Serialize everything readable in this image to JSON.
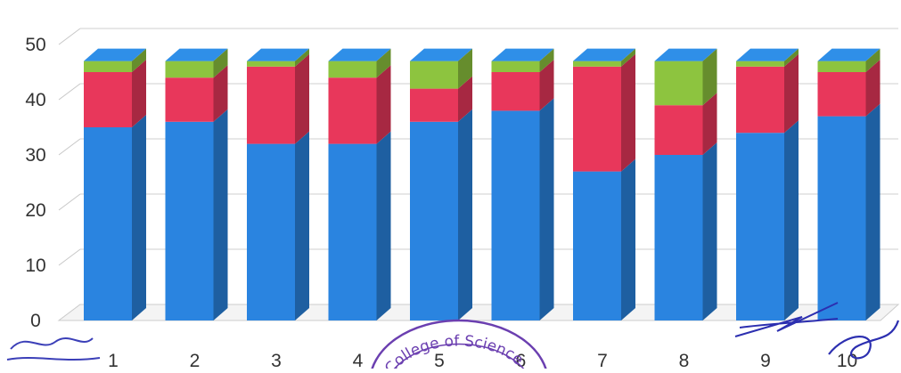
{
  "chart_data": {
    "type": "bar",
    "stacked": true,
    "style": "3d-column",
    "categories": [
      "1",
      "2",
      "3",
      "4",
      "5",
      "6",
      "7",
      "8",
      "9",
      "10"
    ],
    "series": [
      {
        "color": "#2a84e0",
        "values": [
          35,
          36,
          32,
          32,
          36,
          38,
          27,
          30,
          34,
          37
        ]
      },
      {
        "color": "#e8375b",
        "values": [
          10,
          8,
          14,
          12,
          6,
          7,
          19,
          9,
          12,
          8
        ]
      },
      {
        "color": "#8dc43f",
        "values": [
          2,
          3,
          1,
          3,
          5,
          2,
          1,
          8,
          1,
          2
        ]
      }
    ],
    "yticks": [
      "0",
      "10",
      "20",
      "30",
      "40",
      "50"
    ],
    "ylim": [
      0,
      50
    ],
    "grid": true,
    "legend": "none"
  },
  "stamp": {
    "text": "College of Science",
    "color": "#6b3fb0"
  }
}
